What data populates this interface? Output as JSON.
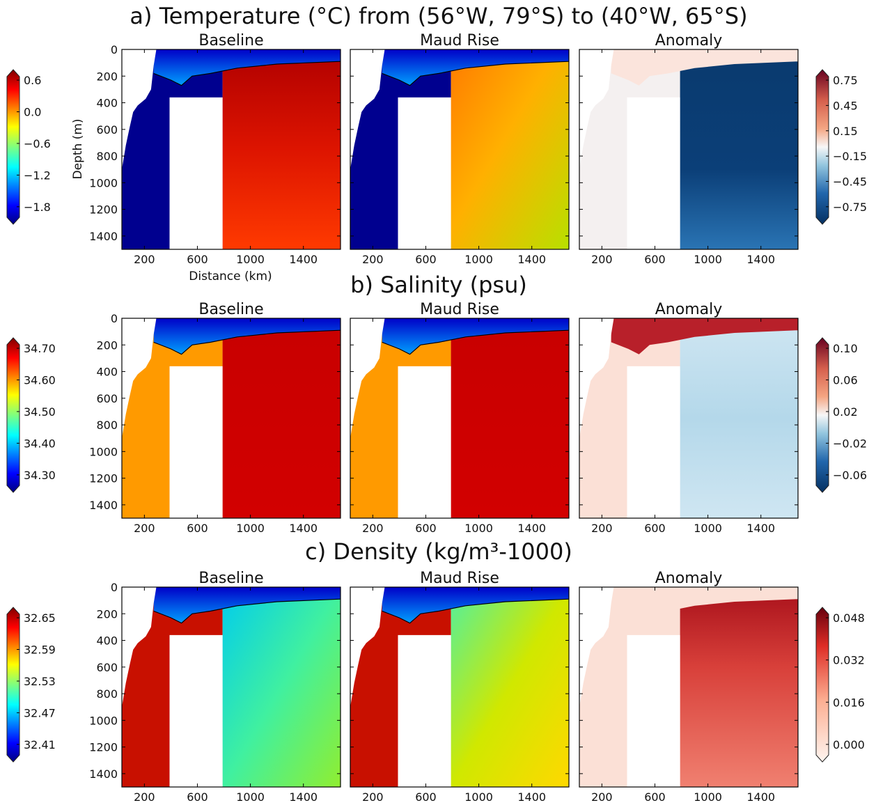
{
  "figure": {
    "rows": [
      {
        "id": "temperature",
        "title": "a) Temperature (°C) from (56°W, 79°S) to (40°W, 65°S)",
        "panels": [
          "Baseline",
          "Maud Rise",
          "Anomaly"
        ],
        "ylabel": "Depth (m)",
        "xlabel": "Distance (km)",
        "left_colorbar": {
          "cmap": "jet",
          "ticks": [
            "0.6",
            "0.0",
            "−0.6",
            "−1.2",
            "−1.8"
          ]
        },
        "right_colorbar": {
          "cmap": "rdbu",
          "ticks": [
            "0.75",
            "0.45",
            "0.15",
            "−0.15",
            "−0.45",
            "−0.75"
          ]
        }
      },
      {
        "id": "salinity",
        "title": "b) Salinity (psu)",
        "panels": [
          "Baseline",
          "Maud Rise",
          "Anomaly"
        ],
        "ylabel": "",
        "xlabel": "",
        "left_colorbar": {
          "cmap": "jet",
          "ticks": [
            "34.70",
            "34.60",
            "34.50",
            "34.40",
            "34.30"
          ]
        },
        "right_colorbar": {
          "cmap": "rdbu",
          "ticks": [
            "0.10",
            "0.06",
            "0.02",
            "−0.02",
            "−0.06"
          ]
        }
      },
      {
        "id": "density",
        "title": "c) Density (kg/m³-1000)",
        "panels": [
          "Baseline",
          "Maud Rise",
          "Anomaly"
        ],
        "ylabel": "",
        "xlabel": "",
        "left_colorbar": {
          "cmap": "jet",
          "ticks": [
            "32.65",
            "32.59",
            "32.53",
            "32.47",
            "32.41"
          ]
        },
        "right_colorbar": {
          "cmap": "reds",
          "ticks": [
            "0.048",
            "0.032",
            "0.016",
            "0.000"
          ]
        }
      }
    ]
  },
  "chart_data": {
    "type": "heatmap",
    "description_of_axes": "depth-distance sections",
    "x": {
      "ticks": [
        200,
        600,
        1000,
        1400
      ],
      "range": [
        30,
        1680
      ],
      "unit": "km"
    },
    "y": {
      "ticks": [
        0,
        200,
        400,
        600,
        800,
        1000,
        1200,
        1400
      ],
      "range": [
        0,
        1500
      ],
      "inverted": true,
      "unit": "m"
    },
    "fields": {
      "temperature": {
        "baseline_range": [
          -1.8,
          0.6
        ],
        "anomaly_range": [
          -0.75,
          0.75
        ]
      },
      "salinity": {
        "baseline_range": [
          34.3,
          34.7
        ],
        "anomaly_range": [
          -0.06,
          0.1
        ]
      },
      "density": {
        "baseline_range": [
          32.41,
          32.65
        ],
        "anomaly_range": [
          0.0,
          0.048
        ]
      }
    }
  }
}
